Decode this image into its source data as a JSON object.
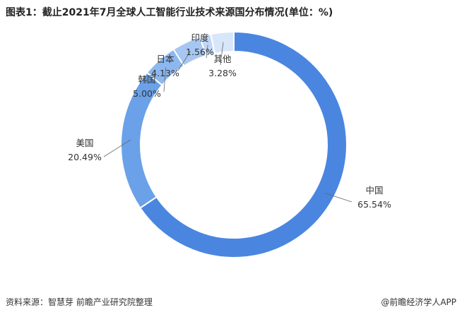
{
  "chart_data": {
    "type": "donut",
    "title": "图表1：截止2021年7月全球人工智能行业技术来源国分布情况(单位：%)",
    "categories": [
      "中国",
      "美国",
      "韩国",
      "日本",
      "印度",
      "其他"
    ],
    "values": [
      65.54,
      20.49,
      5.0,
      4.13,
      1.56,
      3.28
    ],
    "value_labels": [
      "65.54%",
      "20.49%",
      "5.00%",
      "4.13%",
      "1.56%",
      "3.28%"
    ],
    "colors": [
      "#4a86e0",
      "#6aa1e8",
      "#8db7ef",
      "#a6c7f2",
      "#c0d7f5",
      "#d8e6f9"
    ],
    "source": "资料来源：智慧芽 前瞻产业研究院整理",
    "credit": "@前瞻经济学人APP"
  }
}
